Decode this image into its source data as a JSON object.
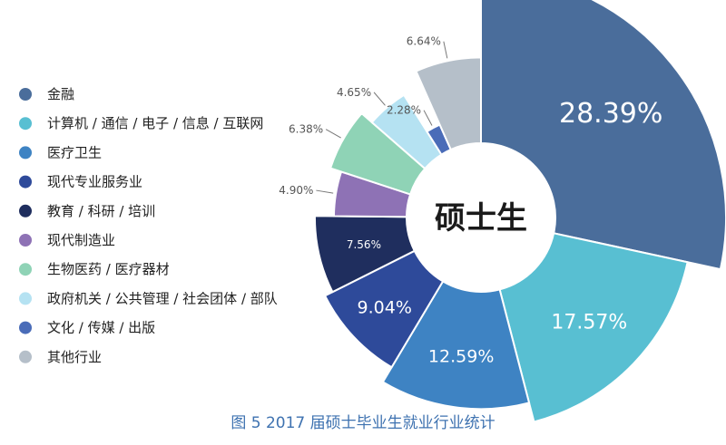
{
  "chart_data": {
    "type": "pie",
    "center_label": "硕士生",
    "legend_placement": "left",
    "categories": [
      "金融",
      "计算机 / 通信 / 电子 / 信息 / 互联网",
      "医疗卫生",
      "现代专业服务业",
      "教育 / 科研 / 培训",
      "现代制造业",
      "生物医药 / 医疗器材",
      "政府机关 / 公共管理 / 社会团体 / 部队",
      "文化 / 传媒 / 出版",
      "其他行业"
    ],
    "values": [
      28.39,
      17.57,
      12.59,
      9.04,
      7.56,
      4.9,
      6.38,
      4.65,
      2.28,
      6.64
    ],
    "value_labels": [
      "28.39%",
      "17.57%",
      "12.59%",
      "9.04%",
      "7.56%",
      "4.90%",
      "6.38%",
      "4.65%",
      "2.28%",
      "6.64%"
    ],
    "colors": [
      "#4a6d9b",
      "#58bfd2",
      "#3e83c3",
      "#2e4a9a",
      "#1f2e5e",
      "#8e72b5",
      "#8fd3b6",
      "#b5e2f2",
      "#4a6cb8",
      "#b5bfc9"
    ]
  },
  "caption": "图 5  2017 届硕士毕业生就业行业统计"
}
